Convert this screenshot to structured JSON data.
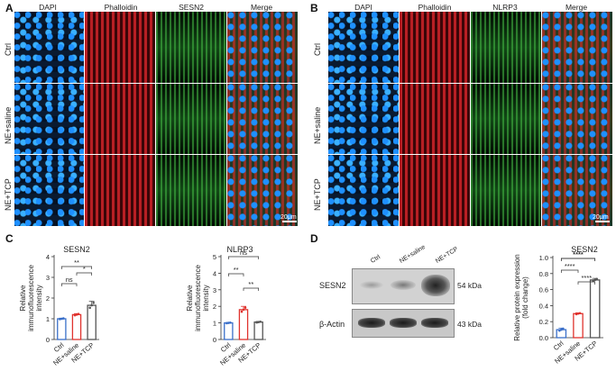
{
  "panel_letters": {
    "a": "A",
    "b": "B",
    "c": "C",
    "d": "D"
  },
  "panel_a": {
    "columns": [
      "DAPI",
      "Phalloidin",
      "SESN2",
      "Merge"
    ],
    "rows": [
      "Ctrl",
      "NE+saline",
      "NE+TCP"
    ],
    "scale_bar": "20μm"
  },
  "panel_b": {
    "columns": [
      "DAPI",
      "Phalloidin",
      "NLRP3",
      "Merge"
    ],
    "rows": [
      "Ctrl",
      "NE+saline",
      "NE+TCP"
    ],
    "scale_bar": "20μm"
  },
  "colors": {
    "dapi": "#1e90ff",
    "phalloidin": "#cc2a2a",
    "green": "#2fae3a",
    "ctrl": "#3a6fc9",
    "saline": "#e0332e",
    "tcp": "#555555"
  },
  "chart_data": [
    {
      "type": "bar",
      "title": "SESN2",
      "ylabel": "Relative immunofluorescence intensity",
      "categories": [
        "Ctrl",
        "NE+saline",
        "NE+TCP"
      ],
      "values": [
        1.0,
        1.2,
        1.65
      ],
      "errors": [
        0.03,
        0.05,
        0.2
      ],
      "ylim": [
        0,
        4
      ],
      "yticks": [
        0,
        1,
        2,
        3,
        4
      ],
      "significance": [
        {
          "from": 0,
          "to": 1,
          "label": "ns"
        },
        {
          "from": 1,
          "to": 2,
          "label": "*"
        },
        {
          "from": 0,
          "to": 2,
          "label": "**"
        }
      ]
    },
    {
      "type": "bar",
      "title": "NLRP3",
      "ylabel": "Relative immunofluorescence intensity",
      "categories": [
        "Ctrl",
        "NE+saline",
        "NE+TCP"
      ],
      "values": [
        1.0,
        1.8,
        1.05
      ],
      "errors": [
        0.03,
        0.2,
        0.04
      ],
      "ylim": [
        0,
        5
      ],
      "yticks": [
        0,
        1,
        2,
        3,
        4,
        5
      ],
      "significance": [
        {
          "from": 0,
          "to": 1,
          "label": "**"
        },
        {
          "from": 1,
          "to": 2,
          "label": "**"
        },
        {
          "from": 0,
          "to": 2,
          "label": "ns"
        }
      ]
    },
    {
      "type": "bar",
      "title": "SESN2",
      "ylabel": "Relative protein expression (fold change)",
      "categories": [
        "Ctrl",
        "NE+saline",
        "NE+TCP"
      ],
      "values": [
        0.1,
        0.3,
        0.72
      ],
      "errors": [
        0.02,
        0.01,
        0.02
      ],
      "ylim": [
        0,
        1.0
      ],
      "yticks": [
        0.0,
        0.2,
        0.4,
        0.6,
        0.8,
        1.0
      ],
      "significance": [
        {
          "from": 1,
          "to": 2,
          "label": "****"
        },
        {
          "from": 0,
          "to": 1,
          "label": "****"
        },
        {
          "from": 0,
          "to": 2,
          "label": "****"
        },
        {
          "from": 0,
          "to": 2,
          "label": "****"
        }
      ]
    }
  ],
  "western": {
    "lanes": [
      "Ctrl",
      "NE+saline",
      "NE+TCP"
    ],
    "rows": [
      {
        "label": "SESN2",
        "kda": "54 kDa"
      },
      {
        "label": "β-Actin",
        "kda": "43 kDa"
      }
    ]
  }
}
